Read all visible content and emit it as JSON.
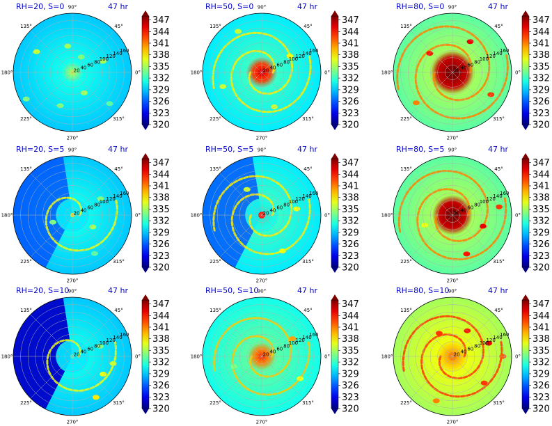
{
  "chart_data": {
    "type": "heatmap",
    "layout": {
      "rows": 3,
      "cols": 3
    },
    "colorbar": {
      "ticks": [
        347,
        344,
        341,
        338,
        335,
        332,
        329,
        326,
        323,
        320
      ],
      "range": [
        320,
        348
      ],
      "colormap": "jet",
      "extend": "both"
    },
    "angle_labels": [
      "90°",
      "45°",
      "0°",
      "315°",
      "270°",
      "225°",
      "180°",
      "135°"
    ],
    "radial_labels": [
      "20",
      "40",
      "60",
      "80",
      "100",
      "120",
      "140",
      "160"
    ],
    "panels": [
      {
        "title": "RH=20, S=0",
        "time": "47 hr",
        "mean": 330,
        "core": 336,
        "core_radius": 0.06,
        "bands": 0,
        "west_cold": 0,
        "blobs": [
          [
            0.55,
            20,
            335
          ],
          [
            0.6,
            250,
            334
          ],
          [
            0.7,
            150,
            336
          ],
          [
            0.3,
            60,
            334
          ],
          [
            0.82,
            320,
            333
          ],
          [
            0.45,
            100,
            335
          ],
          [
            0.9,
            210,
            334
          ],
          [
            0.4,
            300,
            335
          ]
        ]
      },
      {
        "title": "RH=50, S=0",
        "time": "47 hr",
        "mean": 331,
        "core": 345,
        "core_radius": 0.14,
        "bands": 2,
        "west_cold": 0,
        "blobs": [
          [
            0.55,
            30,
            337
          ],
          [
            0.7,
            200,
            336
          ],
          [
            0.8,
            120,
            336
          ],
          [
            0.62,
            290,
            336
          ]
        ]
      },
      {
        "title": "RH=80, S=0",
        "time": "47 hr",
        "mean": 334,
        "core": 348,
        "core_radius": 0.25,
        "bands": 2,
        "west_cold": 0,
        "blobs": [
          [
            0.6,
            60,
            345
          ],
          [
            0.75,
            330,
            343
          ],
          [
            0.8,
            220,
            341
          ],
          [
            0.5,
            140,
            344
          ]
        ]
      },
      {
        "title": "RH=20, S=5",
        "time": "47 hr",
        "mean": 330,
        "core": 338,
        "core_radius": 0.07,
        "bands": 1,
        "west_cold": 1,
        "blobs": [
          [
            0.4,
            330,
            335
          ],
          [
            0.55,
            30,
            334
          ],
          [
            0.35,
            200,
            334
          ],
          [
            0.75,
            300,
            333
          ]
        ]
      },
      {
        "title": "RH=50, S=5",
        "time": "47 hr",
        "mean": 331,
        "core": 344,
        "core_radius": 0.13,
        "bands": 2,
        "west_cold": 1,
        "blobs": [
          [
            0.6,
            10,
            337
          ],
          [
            0.7,
            300,
            337
          ],
          [
            0.5,
            120,
            336
          ]
        ]
      },
      {
        "title": "RH=80, S=5",
        "time": "47 hr",
        "mean": 334,
        "core": 348,
        "core_radius": 0.22,
        "bands": 2,
        "west_cold": 0,
        "blobs": [
          [
            0.55,
            340,
            345
          ],
          [
            0.7,
            290,
            344
          ],
          [
            0.8,
            10,
            343
          ],
          [
            0.5,
            200,
            337
          ]
        ]
      },
      {
        "title": "RH=20, S=10",
        "time": "47 hr",
        "mean": 330,
        "core": 332,
        "core_radius": 0.05,
        "bands": 1,
        "west_cold": 2,
        "blobs": [
          [
            0.6,
            330,
            337
          ],
          [
            0.8,
            300,
            338
          ],
          [
            0.5,
            20,
            334
          ],
          [
            0.7,
            350,
            336
          ]
        ]
      },
      {
        "title": "RH=50, S=10",
        "time": "47 hr",
        "mean": 332,
        "core": 343,
        "core_radius": 0.12,
        "bands": 2,
        "west_cold": 0,
        "blobs": [
          [
            0.6,
            30,
            340
          ],
          [
            0.75,
            330,
            337
          ],
          [
            0.5,
            200,
            334
          ]
        ]
      },
      {
        "title": "RH=80, S=10",
        "time": "47 hr",
        "mean": 336,
        "core": 341,
        "core_radius": 0.15,
        "bands": 2,
        "west_cold": 0,
        "blobs": [
          [
            0.5,
            60,
            344
          ],
          [
            0.65,
            20,
            345
          ],
          [
            0.7,
            320,
            343
          ],
          [
            0.45,
            120,
            343
          ],
          [
            0.8,
            250,
            341
          ],
          [
            0.85,
            0,
            342
          ]
        ]
      }
    ]
  }
}
